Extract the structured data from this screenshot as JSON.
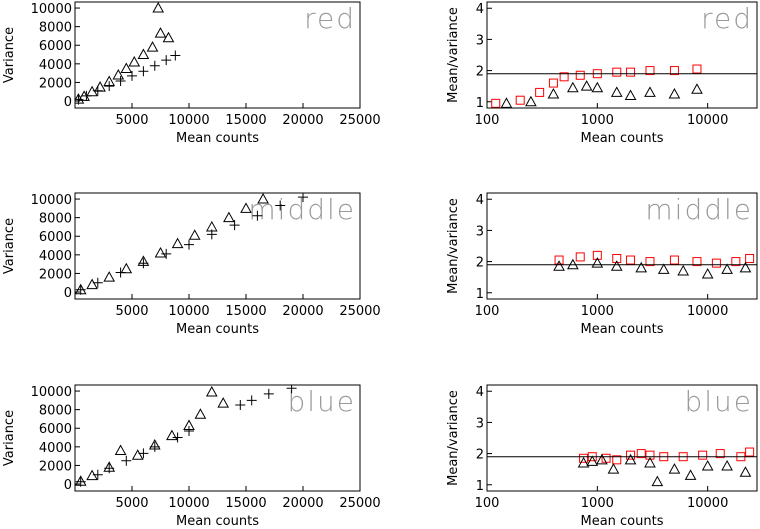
{
  "chart_data": [
    {
      "type": "scatter",
      "title": "red",
      "xlabel": "Mean counts",
      "ylabel": "Variance",
      "xlim": [
        0,
        25000
      ],
      "ylim": [
        -750,
        10650
      ],
      "xticks": [
        5000,
        10000,
        15000,
        20000,
        25000
      ],
      "yticks": [
        0,
        2000,
        4000,
        6000,
        8000,
        10000
      ],
      "series": [
        {
          "marker": "triangle",
          "color": "#000000",
          "x": [
            300,
            800,
            1500,
            2200,
            3000,
            3800,
            4500,
            5200,
            6000,
            6800,
            7500,
            8200,
            7300
          ],
          "values": [
            200,
            500,
            1000,
            1500,
            2100,
            2800,
            3500,
            4200,
            5000,
            5800,
            7300,
            6800,
            10000
          ]
        },
        {
          "marker": "plus",
          "color": "#000000",
          "x": [
            300,
            1000,
            2000,
            3000,
            4000,
            5000,
            6000,
            7000,
            8000,
            8800
          ],
          "values": [
            150,
            550,
            1100,
            1600,
            2150,
            2700,
            3200,
            3800,
            4400,
            4900
          ]
        }
      ]
    },
    {
      "type": "scatter",
      "title": "red",
      "xlabel": "Mean counts",
      "ylabel": "Mean/variance",
      "xlog": true,
      "hline": 1.9,
      "xlim": [
        100,
        28000
      ],
      "ylim": [
        0.8,
        4.2
      ],
      "xticks": [
        100,
        1000,
        10000
      ],
      "yticks": [
        1,
        2,
        3,
        4
      ],
      "series": [
        {
          "marker": "square",
          "color": "#ff0000",
          "x": [
            120,
            200,
            300,
            400,
            500,
            700,
            1000,
            1500,
            2000,
            3000,
            5000,
            8000
          ],
          "values": [
            0.95,
            1.05,
            1.3,
            1.6,
            1.8,
            1.85,
            1.9,
            1.95,
            1.95,
            2.0,
            2.0,
            2.05
          ]
        },
        {
          "marker": "triangle",
          "color": "#000000",
          "x": [
            150,
            250,
            400,
            600,
            800,
            1000,
            1500,
            2000,
            3000,
            5000,
            8000
          ],
          "values": [
            0.95,
            1.0,
            1.25,
            1.45,
            1.5,
            1.45,
            1.3,
            1.2,
            1.3,
            1.25,
            1.4
          ]
        }
      ]
    },
    {
      "type": "scatter",
      "title": "middle",
      "xlabel": "Mean counts",
      "ylabel": "Variance",
      "xlim": [
        0,
        25000
      ],
      "ylim": [
        -750,
        10650
      ],
      "xticks": [
        5000,
        10000,
        15000,
        20000,
        25000
      ],
      "yticks": [
        0,
        2000,
        4000,
        6000,
        8000,
        10000
      ],
      "series": [
        {
          "marker": "triangle",
          "color": "#000000",
          "x": [
            500,
            1500,
            3000,
            4500,
            6000,
            7500,
            9000,
            10500,
            12000,
            13500,
            15000,
            16500
          ],
          "values": [
            250,
            800,
            1600,
            2500,
            3300,
            4200,
            5200,
            6100,
            7000,
            8000,
            9000,
            10000
          ]
        },
        {
          "marker": "plus",
          "color": "#000000",
          "x": [
            500,
            2000,
            4000,
            6000,
            8000,
            10000,
            12000,
            14000,
            16000,
            18000,
            20000
          ],
          "values": [
            250,
            1000,
            2100,
            3100,
            4100,
            5100,
            6200,
            7200,
            8200,
            9300,
            10200
          ]
        }
      ]
    },
    {
      "type": "scatter",
      "title": "middle",
      "xlabel": "Mean counts",
      "ylabel": "Mean/variance",
      "xlog": true,
      "hline": 1.9,
      "xlim": [
        100,
        28000
      ],
      "ylim": [
        0.8,
        4.2
      ],
      "xticks": [
        100,
        1000,
        10000
      ],
      "yticks": [
        1,
        2,
        3,
        4
      ],
      "series": [
        {
          "marker": "square",
          "color": "#ff0000",
          "x": [
            450,
            700,
            1000,
            1500,
            2000,
            3000,
            5000,
            8000,
            12000,
            18000,
            24000
          ],
          "values": [
            2.05,
            2.15,
            2.2,
            2.1,
            2.05,
            2.0,
            2.05,
            2.0,
            1.95,
            2.0,
            2.1
          ]
        },
        {
          "marker": "triangle",
          "color": "#000000",
          "x": [
            450,
            600,
            1000,
            1500,
            2500,
            4000,
            6000,
            10000,
            15000,
            22000
          ],
          "values": [
            1.85,
            1.9,
            1.95,
            1.85,
            1.8,
            1.75,
            1.7,
            1.6,
            1.75,
            1.8
          ]
        }
      ]
    },
    {
      "type": "scatter",
      "title": "blue",
      "xlabel": "Mean counts",
      "ylabel": "Variance",
      "xlim": [
        0,
        25000
      ],
      "ylim": [
        -750,
        10650
      ],
      "xticks": [
        5000,
        10000,
        15000,
        20000,
        25000
      ],
      "yticks": [
        0,
        2000,
        4000,
        6000,
        8000,
        10000
      ],
      "series": [
        {
          "marker": "triangle",
          "color": "#000000",
          "x": [
            500,
            1500,
            3000,
            4000,
            5500,
            7000,
            8500,
            10000,
            11000,
            12000,
            13000
          ],
          "values": [
            300,
            900,
            1800,
            3600,
            3100,
            4200,
            5200,
            6300,
            7500,
            9900,
            8700
          ]
        },
        {
          "marker": "plus",
          "color": "#000000",
          "x": [
            500,
            2000,
            3000,
            4500,
            6000,
            7000,
            9000,
            10000,
            14500,
            15500,
            17000,
            19000
          ],
          "values": [
            250,
            1000,
            1700,
            2500,
            3300,
            4000,
            5000,
            5700,
            8500,
            9000,
            9700,
            10300
          ]
        }
      ]
    },
    {
      "type": "scatter",
      "title": "blue",
      "xlabel": "Mean counts",
      "ylabel": "Mean/variance",
      "xlog": true,
      "hline": 1.9,
      "xlim": [
        100,
        28000
      ],
      "ylim": [
        0.8,
        4.2
      ],
      "xticks": [
        100,
        1000,
        10000
      ],
      "yticks": [
        1,
        2,
        3,
        4
      ],
      "series": [
        {
          "marker": "square",
          "color": "#ff0000",
          "x": [
            750,
            900,
            1200,
            1500,
            2000,
            2500,
            3000,
            4000,
            6000,
            9000,
            13000,
            20000,
            24000
          ],
          "values": [
            1.85,
            1.9,
            1.85,
            1.8,
            1.95,
            2.0,
            1.95,
            1.9,
            1.9,
            1.95,
            2.0,
            1.9,
            2.05
          ]
        },
        {
          "marker": "triangle",
          "color": "#000000",
          "x": [
            750,
            900,
            1100,
            1400,
            2000,
            3000,
            3500,
            5000,
            7000,
            10000,
            15000,
            22000
          ],
          "values": [
            1.7,
            1.75,
            1.8,
            1.5,
            1.8,
            1.7,
            1.1,
            1.5,
            1.3,
            1.6,
            1.6,
            1.4
          ]
        }
      ]
    }
  ]
}
